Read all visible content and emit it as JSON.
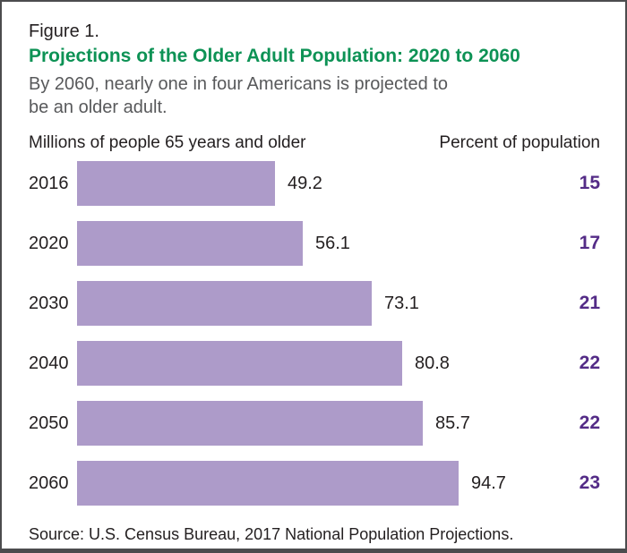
{
  "figure": {
    "label": "Figure 1.",
    "title": "Projections of the Older Adult Population: 2020 to 2060",
    "subtitle_lines": [
      "By 2060, nearly one in four Americans is projected to",
      "be an older adult."
    ],
    "source": "Source: U.S. Census Bureau, 2017 National Population Projections."
  },
  "columns": {
    "left_header": "Millions of people 65 years and older",
    "right_header": "Percent of population"
  },
  "chart_data": {
    "type": "bar",
    "orientation": "horizontal",
    "title": "Projections of the Older Adult Population: 2020 to 2060",
    "categories": [
      "2016",
      "2020",
      "2030",
      "2040",
      "2050",
      "2060"
    ],
    "series": [
      {
        "name": "Millions of people 65 years and older",
        "values": [
          49.2,
          56.1,
          73.1,
          80.8,
          85.7,
          94.7
        ]
      },
      {
        "name": "Percent of population",
        "values": [
          15,
          17,
          21,
          22,
          22,
          23
        ]
      }
    ],
    "xlim": [
      0,
      100
    ],
    "grid": false,
    "legend": "none",
    "value_labels": "outside-end"
  },
  "colors": {
    "bar": "#ad9bc9",
    "title_green": "#0d9255",
    "percent_purple": "#542c87",
    "subtitle_gray": "#58595b",
    "text_dark": "#231f20",
    "border": "#4c4c4e"
  }
}
